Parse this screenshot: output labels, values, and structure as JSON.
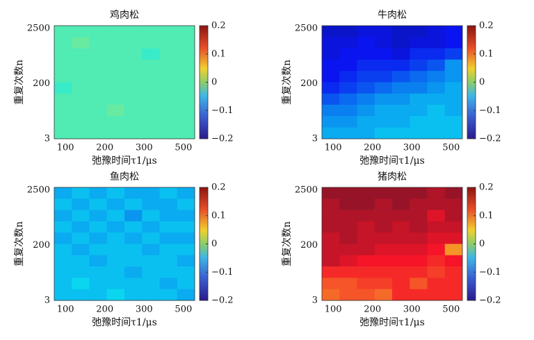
{
  "chart_data": [
    {
      "type": "heatmap",
      "title": "鸡肉松",
      "xlabel": "弛豫时间τ1/μs",
      "ylabel": "重复次数n",
      "colormap": "jet",
      "x_tick_labels": [
        100,
        200,
        300,
        500
      ],
      "y_tick_labels": [
        3,
        200,
        2500
      ],
      "zlim": [
        -0.2,
        0.2
      ],
      "zticks": [
        {
          "value": -0.2,
          "label": "−0.2"
        },
        {
          "value": -0.1,
          "label": "−0.1"
        },
        0,
        0.1,
        0.2
      ],
      "z": [
        [
          -0.02,
          -0.02,
          -0.02,
          -0.02,
          -0.02,
          -0.02,
          -0.02,
          -0.02
        ],
        [
          -0.02,
          -0.01,
          -0.02,
          -0.02,
          -0.02,
          -0.02,
          -0.02,
          -0.02
        ],
        [
          -0.02,
          -0.02,
          -0.02,
          -0.02,
          -0.02,
          -0.03,
          -0.02,
          -0.02
        ],
        [
          -0.02,
          -0.02,
          -0.02,
          -0.02,
          -0.02,
          -0.02,
          -0.02,
          -0.02
        ],
        [
          -0.02,
          -0.02,
          -0.02,
          -0.02,
          -0.02,
          -0.02,
          -0.02,
          -0.02
        ],
        [
          -0.03,
          -0.02,
          -0.02,
          -0.02,
          -0.02,
          -0.02,
          -0.02,
          -0.02
        ],
        [
          -0.02,
          -0.02,
          -0.02,
          -0.02,
          -0.02,
          -0.02,
          -0.02,
          -0.02
        ],
        [
          -0.02,
          -0.02,
          -0.02,
          -0.01,
          -0.02,
          -0.02,
          -0.02,
          -0.02
        ],
        [
          -0.02,
          -0.02,
          -0.02,
          -0.02,
          -0.02,
          -0.02,
          -0.02,
          -0.02
        ],
        [
          -0.02,
          -0.02,
          -0.02,
          -0.02,
          -0.02,
          -0.02,
          -0.02,
          -0.02
        ]
      ]
    },
    {
      "type": "heatmap",
      "title": "牛肉松",
      "xlabel": "弛豫时间τ1/μs",
      "ylabel": "重复次数n",
      "colormap": "jet",
      "x_tick_labels": [
        100,
        200,
        300,
        500
      ],
      "y_tick_labels": [
        3,
        200,
        2500
      ],
      "zlim": [
        -0.2,
        0.2
      ],
      "zticks": [
        {
          "value": -0.2,
          "label": "−0.2"
        },
        {
          "value": -0.1,
          "label": "−0.1"
        },
        0,
        0.1,
        0.2
      ],
      "z": [
        [
          -0.17,
          -0.17,
          -0.16,
          -0.16,
          -0.17,
          -0.17,
          -0.16,
          -0.15
        ],
        [
          -0.16,
          -0.16,
          -0.15,
          -0.16,
          -0.17,
          -0.16,
          -0.16,
          -0.15
        ],
        [
          -0.16,
          -0.15,
          -0.15,
          -0.15,
          -0.16,
          -0.14,
          -0.14,
          -0.13
        ],
        [
          -0.15,
          -0.15,
          -0.14,
          -0.14,
          -0.14,
          -0.13,
          -0.12,
          -0.09
        ],
        [
          -0.15,
          -0.14,
          -0.13,
          -0.13,
          -0.12,
          -0.11,
          -0.1,
          -0.09
        ],
        [
          -0.14,
          -0.13,
          -0.12,
          -0.11,
          -0.1,
          -0.1,
          -0.09,
          -0.08
        ],
        [
          -0.12,
          -0.11,
          -0.1,
          -0.09,
          -0.09,
          -0.08,
          -0.08,
          -0.08
        ],
        [
          -0.1,
          -0.1,
          -0.09,
          -0.08,
          -0.08,
          -0.08,
          -0.07,
          -0.08
        ],
        [
          -0.09,
          -0.09,
          -0.08,
          -0.08,
          -0.08,
          -0.07,
          -0.07,
          -0.07
        ],
        [
          -0.08,
          -0.08,
          -0.08,
          -0.07,
          -0.07,
          -0.07,
          -0.07,
          -0.07
        ]
      ]
    },
    {
      "type": "heatmap",
      "title": "鱼肉松",
      "xlabel": "弛豫时间τ1/μs",
      "ylabel": "重复次数n",
      "colormap": "jet",
      "x_tick_labels": [
        100,
        200,
        300,
        500
      ],
      "y_tick_labels": [
        3,
        200,
        2500
      ],
      "zlim": [
        -0.2,
        0.2
      ],
      "zticks": [
        {
          "value": -0.2,
          "label": "−0.2"
        },
        {
          "value": -0.1,
          "label": "−0.1"
        },
        0,
        0.1,
        0.2
      ],
      "z": [
        [
          -0.08,
          -0.07,
          -0.08,
          -0.07,
          -0.08,
          -0.08,
          -0.07,
          -0.08
        ],
        [
          -0.07,
          -0.08,
          -0.07,
          -0.08,
          -0.07,
          -0.08,
          -0.08,
          -0.07
        ],
        [
          -0.08,
          -0.07,
          -0.08,
          -0.07,
          -0.09,
          -0.07,
          -0.08,
          -0.08
        ],
        [
          -0.07,
          -0.08,
          -0.07,
          -0.08,
          -0.07,
          -0.08,
          -0.07,
          -0.07
        ],
        [
          -0.08,
          -0.07,
          -0.08,
          -0.07,
          -0.08,
          -0.07,
          -0.08,
          -0.08
        ],
        [
          -0.07,
          -0.08,
          -0.07,
          -0.07,
          -0.07,
          -0.08,
          -0.07,
          -0.07
        ],
        [
          -0.07,
          -0.07,
          -0.08,
          -0.07,
          -0.07,
          -0.07,
          -0.07,
          -0.08
        ],
        [
          -0.07,
          -0.07,
          -0.07,
          -0.07,
          -0.08,
          -0.07,
          -0.07,
          -0.07
        ],
        [
          -0.07,
          -0.06,
          -0.07,
          -0.07,
          -0.07,
          -0.07,
          -0.08,
          -0.07
        ],
        [
          -0.07,
          -0.07,
          -0.07,
          -0.06,
          -0.07,
          -0.07,
          -0.07,
          -0.08
        ]
      ]
    },
    {
      "type": "heatmap",
      "title": "猪肉松",
      "xlabel": "弛豫时间τ1/μs",
      "ylabel": "重复次数n",
      "colormap": "jet",
      "x_tick_labels": [
        100,
        200,
        300,
        500
      ],
      "y_tick_labels": [
        3,
        200,
        2500
      ],
      "zlim": [
        -0.2,
        0.2
      ],
      "zticks": [
        {
          "value": -0.2,
          "label": "−0.2"
        },
        {
          "value": -0.1,
          "label": "−0.1"
        },
        0,
        0.1,
        0.2
      ],
      "z": [
        [
          0.19,
          0.19,
          0.19,
          0.19,
          0.19,
          0.19,
          0.18,
          0.19
        ],
        [
          0.18,
          0.19,
          0.19,
          0.18,
          0.19,
          0.18,
          0.18,
          0.18
        ],
        [
          0.18,
          0.18,
          0.18,
          0.18,
          0.18,
          0.18,
          0.16,
          0.18
        ],
        [
          0.18,
          0.18,
          0.17,
          0.18,
          0.17,
          0.18,
          0.17,
          0.17
        ],
        [
          0.17,
          0.18,
          0.17,
          0.17,
          0.17,
          0.17,
          0.16,
          0.16
        ],
        [
          0.17,
          0.17,
          0.17,
          0.16,
          0.16,
          0.16,
          0.15,
          0.09
        ],
        [
          0.17,
          0.16,
          0.15,
          0.15,
          0.15,
          0.15,
          0.14,
          0.15
        ],
        [
          0.14,
          0.14,
          0.14,
          0.14,
          0.14,
          0.14,
          0.13,
          0.14
        ],
        [
          0.12,
          0.12,
          0.13,
          0.13,
          0.14,
          0.12,
          0.14,
          0.14
        ],
        [
          0.11,
          0.12,
          0.12,
          0.11,
          0.14,
          0.14,
          0.14,
          0.14
        ]
      ]
    }
  ]
}
